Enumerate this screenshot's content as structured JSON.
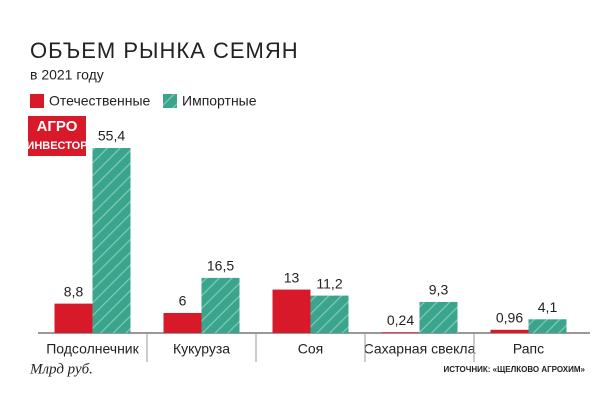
{
  "chart_data": {
    "type": "bar",
    "title": "ОБЪЕМ РЫНКА СЕМЯН",
    "subtitle": "в 2021 году",
    "logo": [
      "АГРО",
      "ИНВЕСТОР"
    ],
    "unit": "Млрд руб.",
    "source": "ИСТОЧНИК: «ЩЕЛКОВО АГРОХИМ»",
    "categories": [
      "Подсолнечник",
      "Кукуруза",
      "Соя",
      "Сахарная свекла",
      "Рапс"
    ],
    "series": [
      {
        "name": "Отечественные",
        "color": "#d7192a",
        "values": [
          8.8,
          6,
          13,
          0.24,
          0.96
        ],
        "value_labels": [
          "8,8",
          "6",
          "13",
          "0,24",
          "0,96"
        ]
      },
      {
        "name": "Импортные",
        "color": "#3aa58c",
        "values": [
          55.4,
          16.5,
          11.2,
          9.3,
          4.1
        ],
        "value_labels": [
          "55,4",
          "16,5",
          "11,2",
          "9,3",
          "4,1"
        ]
      }
    ]
  }
}
